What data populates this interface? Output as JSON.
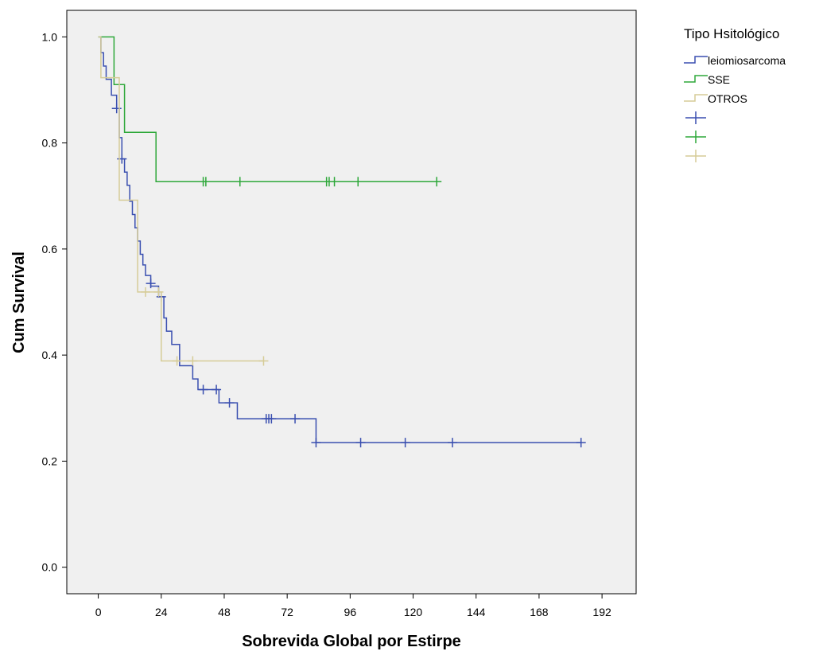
{
  "chart_data": {
    "type": "line",
    "subtype": "kaplan-meier-step",
    "xlabel": "Sobrevida Global por Estirpe",
    "ylabel": "Cum Survival",
    "xlim": [
      -12,
      205
    ],
    "ylim": [
      -0.05,
      1.05
    ],
    "x_ticks": [
      0,
      24,
      48,
      72,
      96,
      120,
      144,
      168,
      192
    ],
    "y_ticks": [
      0.0,
      0.2,
      0.4,
      0.6,
      0.8,
      1.0
    ],
    "x_tick_labels": [
      "0",
      "24",
      "48",
      "72",
      "96",
      "120",
      "144",
      "168",
      "192"
    ],
    "y_tick_labels": [
      "0.0",
      "0.2",
      "0.4",
      "0.6",
      "0.8",
      "1.0"
    ],
    "grid": false,
    "plot_background": "#f0f0f0",
    "legend": {
      "title": "Tipo Hsitológico",
      "placement": "right",
      "labels": [
        "leiomiosarcoma",
        "SSE",
        "OTROS",
        "",
        "",
        ""
      ]
    },
    "series": [
      {
        "name": "leiomiosarcoma",
        "color": "#3a4fb0",
        "steps": [
          [
            0,
            1.0
          ],
          [
            1,
            0.97
          ],
          [
            2,
            0.945
          ],
          [
            3,
            0.92
          ],
          [
            5,
            0.89
          ],
          [
            7,
            0.865
          ],
          [
            8,
            0.81
          ],
          [
            9,
            0.77
          ],
          [
            10,
            0.745
          ],
          [
            11,
            0.72
          ],
          [
            12,
            0.69
          ],
          [
            13,
            0.665
          ],
          [
            14,
            0.64
          ],
          [
            15,
            0.615
          ],
          [
            16,
            0.59
          ],
          [
            17,
            0.57
          ],
          [
            18,
            0.55
          ],
          [
            20,
            0.53
          ],
          [
            23,
            0.51
          ],
          [
            25,
            0.47
          ],
          [
            26,
            0.445
          ],
          [
            28,
            0.42
          ],
          [
            31,
            0.38
          ],
          [
            36,
            0.355
          ],
          [
            38,
            0.335
          ],
          [
            46,
            0.31
          ],
          [
            53,
            0.28
          ],
          [
            83,
            0.235
          ],
          [
            184,
            0.235
          ]
        ],
        "censored": [
          [
            7,
            0.865
          ],
          [
            9,
            0.77
          ],
          [
            20,
            0.535
          ],
          [
            24,
            0.51
          ],
          [
            40,
            0.335
          ],
          [
            45,
            0.335
          ],
          [
            50,
            0.31
          ],
          [
            64,
            0.28
          ],
          [
            65,
            0.28
          ],
          [
            66,
            0.28
          ],
          [
            75,
            0.28
          ],
          [
            83,
            0.235
          ],
          [
            100,
            0.235
          ],
          [
            117,
            0.235
          ],
          [
            135,
            0.235
          ],
          [
            184,
            0.235
          ]
        ]
      },
      {
        "name": "SSE",
        "color": "#2ea83a",
        "steps": [
          [
            0,
            1.0
          ],
          [
            6,
            0.91
          ],
          [
            10,
            0.82
          ],
          [
            22,
            0.727
          ],
          [
            129,
            0.727
          ]
        ],
        "censored": [
          [
            40,
            0.727
          ],
          [
            41,
            0.727
          ],
          [
            54,
            0.727
          ],
          [
            87,
            0.727
          ],
          [
            88,
            0.727
          ],
          [
            90,
            0.727
          ],
          [
            99,
            0.727
          ],
          [
            129,
            0.727
          ]
        ]
      },
      {
        "name": "OTROS",
        "color": "#d6cc97",
        "steps": [
          [
            0,
            1.0
          ],
          [
            1,
            0.923
          ],
          [
            5,
            0.923
          ],
          [
            8,
            0.692
          ],
          [
            15,
            0.519
          ],
          [
            24,
            0.389
          ],
          [
            63,
            0.389
          ]
        ],
        "censored": [
          [
            18,
            0.519
          ],
          [
            23,
            0.519
          ],
          [
            30,
            0.389
          ],
          [
            36,
            0.389
          ],
          [
            63,
            0.389
          ]
        ]
      }
    ]
  }
}
